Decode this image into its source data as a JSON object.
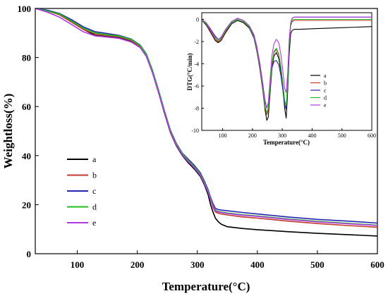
{
  "chart_data": [
    {
      "type": "line",
      "title": "",
      "xlabel": "Temperature(°C)",
      "ylabel": "Weightloss(%)",
      "xlim": [
        30,
        600
      ],
      "ylim": [
        0,
        100
      ],
      "xticks": [
        100,
        200,
        300,
        400,
        500,
        600
      ],
      "yticks": [
        0,
        20,
        40,
        60,
        80,
        100
      ],
      "legend_position": "left-middle",
      "grid": false,
      "series": [
        {
          "name": "a",
          "color": "#000000",
          "x": [
            30,
            50,
            70,
            90,
            110,
            130,
            150,
            170,
            190,
            205,
            215,
            225,
            235,
            245,
            255,
            265,
            275,
            285,
            295,
            305,
            312,
            318,
            322,
            326,
            330,
            335,
            340,
            350,
            375,
            400,
            450,
            500,
            550,
            600
          ],
          "y": [
            100,
            99,
            97.5,
            94.5,
            91.5,
            89,
            88.5,
            88,
            86.5,
            84,
            80.5,
            74,
            66,
            57.5,
            49.5,
            44,
            40,
            37,
            34.5,
            31.5,
            28,
            24,
            20,
            17,
            14.5,
            13,
            12,
            11,
            10.3,
            9.8,
            9,
            8.3,
            7.8,
            7.2
          ]
        },
        {
          "name": "b",
          "color": "#c0392b",
          "x": [
            30,
            50,
            70,
            90,
            110,
            130,
            150,
            170,
            190,
            205,
            215,
            225,
            235,
            245,
            255,
            265,
            275,
            285,
            295,
            305,
            312,
            318,
            322,
            326,
            330,
            335,
            340,
            350,
            375,
            400,
            450,
            500,
            550,
            600
          ],
          "y": [
            100,
            99,
            97.5,
            94.5,
            91.5,
            89.5,
            89,
            88.5,
            87,
            84.5,
            81,
            74.5,
            66.5,
            58,
            50,
            44.5,
            40.5,
            37.5,
            35,
            32,
            28.5,
            25,
            22,
            19,
            17,
            16.5,
            16.2,
            15.8,
            15,
            14.5,
            13.3,
            12.3,
            11.5,
            10.8
          ]
        },
        {
          "name": "c",
          "color": "#2424b0",
          "x": [
            30,
            50,
            70,
            90,
            110,
            130,
            150,
            170,
            190,
            205,
            215,
            225,
            235,
            245,
            255,
            265,
            275,
            285,
            295,
            305,
            312,
            318,
            322,
            326,
            330,
            335,
            340,
            350,
            375,
            400,
            450,
            500,
            550,
            600
          ],
          "y": [
            100,
            99.3,
            98,
            95.5,
            92.5,
            90.5,
            89.8,
            89,
            87.5,
            85,
            81.5,
            75,
            67,
            58.5,
            50.5,
            45,
            41,
            38.5,
            36,
            33,
            29.5,
            26,
            23,
            20.5,
            18.5,
            18,
            17.8,
            17.5,
            16.8,
            16.2,
            15,
            14,
            13.3,
            12.5
          ]
        },
        {
          "name": "d",
          "color": "#1fbf1f",
          "x": [
            30,
            50,
            70,
            90,
            110,
            130,
            150,
            170,
            190,
            205,
            215,
            225,
            235,
            245,
            255,
            265,
            275,
            285,
            295,
            305,
            312,
            318,
            322,
            326,
            330,
            335,
            340,
            350,
            375,
            400,
            450,
            500,
            550,
            600
          ],
          "y": [
            100,
            99,
            97.8,
            95,
            92,
            90,
            89.3,
            88.8,
            87.3,
            84.8,
            81.3,
            74.8,
            66.8,
            58.3,
            50.3,
            44.8,
            40.8,
            38,
            35.5,
            32.5,
            29,
            25.5,
            22.5,
            19.8,
            17.8,
            17.2,
            17,
            16.6,
            15.9,
            15.4,
            14.2,
            13.2,
            12.4,
            11.6
          ]
        },
        {
          "name": "e",
          "color": "#b23ae0",
          "x": [
            30,
            50,
            70,
            90,
            110,
            130,
            150,
            170,
            190,
            205,
            215,
            225,
            235,
            245,
            255,
            265,
            275,
            285,
            295,
            305,
            312,
            318,
            322,
            326,
            330,
            335,
            340,
            350,
            375,
            400,
            450,
            500,
            550,
            600
          ],
          "y": [
            100,
            98.5,
            96.5,
            93.5,
            90.5,
            88.8,
            88.3,
            87.8,
            86.3,
            84,
            80.5,
            74,
            66,
            57.8,
            49.8,
            44.3,
            40.3,
            37.5,
            35,
            32,
            28.5,
            25,
            22,
            19.5,
            17.5,
            17,
            16.8,
            16.4,
            15.7,
            15.2,
            14,
            13,
            12.2,
            11.5
          ]
        }
      ]
    },
    {
      "type": "line",
      "title": "",
      "xlabel": "Temperature(°C)",
      "ylabel": "DTG(°C/min)",
      "xlim": [
        30,
        600
      ],
      "ylim": [
        -10,
        0.6
      ],
      "xticks": [
        100,
        200,
        300,
        400,
        500,
        600
      ],
      "yticks": [
        0,
        -2,
        -4,
        -6,
        -8,
        -10
      ],
      "legend_position": "center-right",
      "grid": false,
      "series": [
        {
          "name": "a",
          "color": "#000000",
          "x": [
            30,
            45,
            60,
            75,
            85,
            95,
            110,
            130,
            150,
            170,
            190,
            205,
            215,
            225,
            235,
            242,
            248,
            253,
            258,
            265,
            272,
            280,
            288,
            295,
            302,
            308,
            313,
            318,
            323,
            328,
            333,
            340,
            360,
            400,
            450,
            500,
            550,
            600
          ],
          "y": [
            -0.1,
            -0.5,
            -1.2,
            -1.9,
            -2.1,
            -1.9,
            -1.2,
            -0.4,
            -0.1,
            -0.3,
            -0.8,
            -1.7,
            -2.9,
            -4.5,
            -6.5,
            -8.1,
            -9.1,
            -8.8,
            -7,
            -4.5,
            -3.3,
            -3,
            -3.5,
            -4.6,
            -6.2,
            -8,
            -8.9,
            -6.5,
            -3.2,
            -1.3,
            -1,
            -0.9,
            -0.9,
            -0.85,
            -0.8,
            -0.75,
            -0.7,
            -0.65
          ]
        },
        {
          "name": "b",
          "color": "#c0392b",
          "x": [
            30,
            45,
            60,
            75,
            85,
            95,
            110,
            130,
            150,
            170,
            190,
            205,
            215,
            225,
            235,
            242,
            248,
            253,
            258,
            265,
            272,
            280,
            288,
            295,
            302,
            308,
            313,
            318,
            323,
            328,
            333,
            340,
            360,
            400,
            450,
            500,
            550,
            600
          ],
          "y": [
            -0.1,
            -0.4,
            -1.1,
            -1.8,
            -2,
            -1.8,
            -1.1,
            -0.3,
            0,
            -0.2,
            -0.7,
            -1.6,
            -2.8,
            -4.4,
            -6.4,
            -7.9,
            -8.6,
            -8.2,
            -6.5,
            -4.2,
            -3,
            -2.7,
            -3.2,
            -4.3,
            -5.9,
            -7.4,
            -7.9,
            -5.9,
            -2.5,
            -0.6,
            -0.2,
            -0.1,
            -0.1,
            -0.1,
            -0.1,
            -0.1,
            -0.1,
            -0.1
          ]
        },
        {
          "name": "c",
          "color": "#2424b0",
          "x": [
            30,
            45,
            60,
            75,
            85,
            95,
            110,
            130,
            150,
            170,
            190,
            205,
            215,
            225,
            235,
            242,
            248,
            253,
            258,
            265,
            272,
            280,
            288,
            295,
            302,
            308,
            313,
            318,
            323,
            328,
            333,
            340,
            360,
            400,
            450,
            500,
            550,
            600
          ],
          "y": [
            0,
            -0.3,
            -0.9,
            -1.5,
            -1.8,
            -1.6,
            -0.9,
            -0.2,
            0.1,
            -0.1,
            -0.6,
            -1.4,
            -2.5,
            -4,
            -5.9,
            -7.3,
            -8,
            -7.6,
            -6,
            -4.4,
            -3.8,
            -3.7,
            -4.1,
            -5,
            -6.4,
            -7.7,
            -8.1,
            -6,
            -2.4,
            -0.4,
            0.1,
            0.2,
            0.2,
            0.2,
            0.2,
            0.2,
            0.2,
            0.2
          ]
        },
        {
          "name": "d",
          "color": "#1fbf1f",
          "x": [
            30,
            45,
            60,
            75,
            85,
            95,
            110,
            130,
            150,
            170,
            190,
            205,
            215,
            225,
            235,
            242,
            248,
            253,
            258,
            265,
            272,
            280,
            288,
            295,
            302,
            308,
            313,
            318,
            323,
            328,
            333,
            340,
            360,
            400,
            450,
            500,
            550,
            600
          ],
          "y": [
            -0.1,
            -0.4,
            -1,
            -1.7,
            -1.9,
            -1.7,
            -1,
            -0.3,
            0,
            -0.2,
            -0.7,
            -1.6,
            -2.7,
            -4.3,
            -6.3,
            -7.8,
            -8.4,
            -8,
            -6.4,
            -4,
            -2.9,
            -2.6,
            -3.1,
            -4.2,
            -5.8,
            -7.3,
            -7.8,
            -5.8,
            -2.4,
            -0.5,
            -0.1,
            0,
            0,
            0,
            0,
            0,
            0,
            0
          ]
        },
        {
          "name": "e",
          "color": "#b23ae0",
          "x": [
            30,
            45,
            60,
            75,
            85,
            95,
            110,
            130,
            150,
            170,
            190,
            205,
            215,
            225,
            235,
            242,
            248,
            253,
            258,
            265,
            272,
            280,
            288,
            295,
            302,
            308,
            313,
            318,
            323,
            328,
            333,
            340,
            360,
            400,
            450,
            500,
            550,
            600
          ],
          "y": [
            0,
            -0.3,
            -1,
            -1.6,
            -1.8,
            -1.6,
            -0.9,
            -0.2,
            0.1,
            -0.1,
            -0.6,
            -1.5,
            -2.6,
            -4.2,
            -6.1,
            -7.5,
            -8,
            -7.5,
            -5.8,
            -3.3,
            -2.2,
            -1.8,
            -2.1,
            -3.1,
            -4.7,
            -6.2,
            -6.6,
            -4.8,
            -1.9,
            -0.3,
            0.1,
            0.2,
            0.2,
            0.2,
            0.2,
            0.2,
            0.2,
            0.2
          ]
        }
      ]
    }
  ]
}
